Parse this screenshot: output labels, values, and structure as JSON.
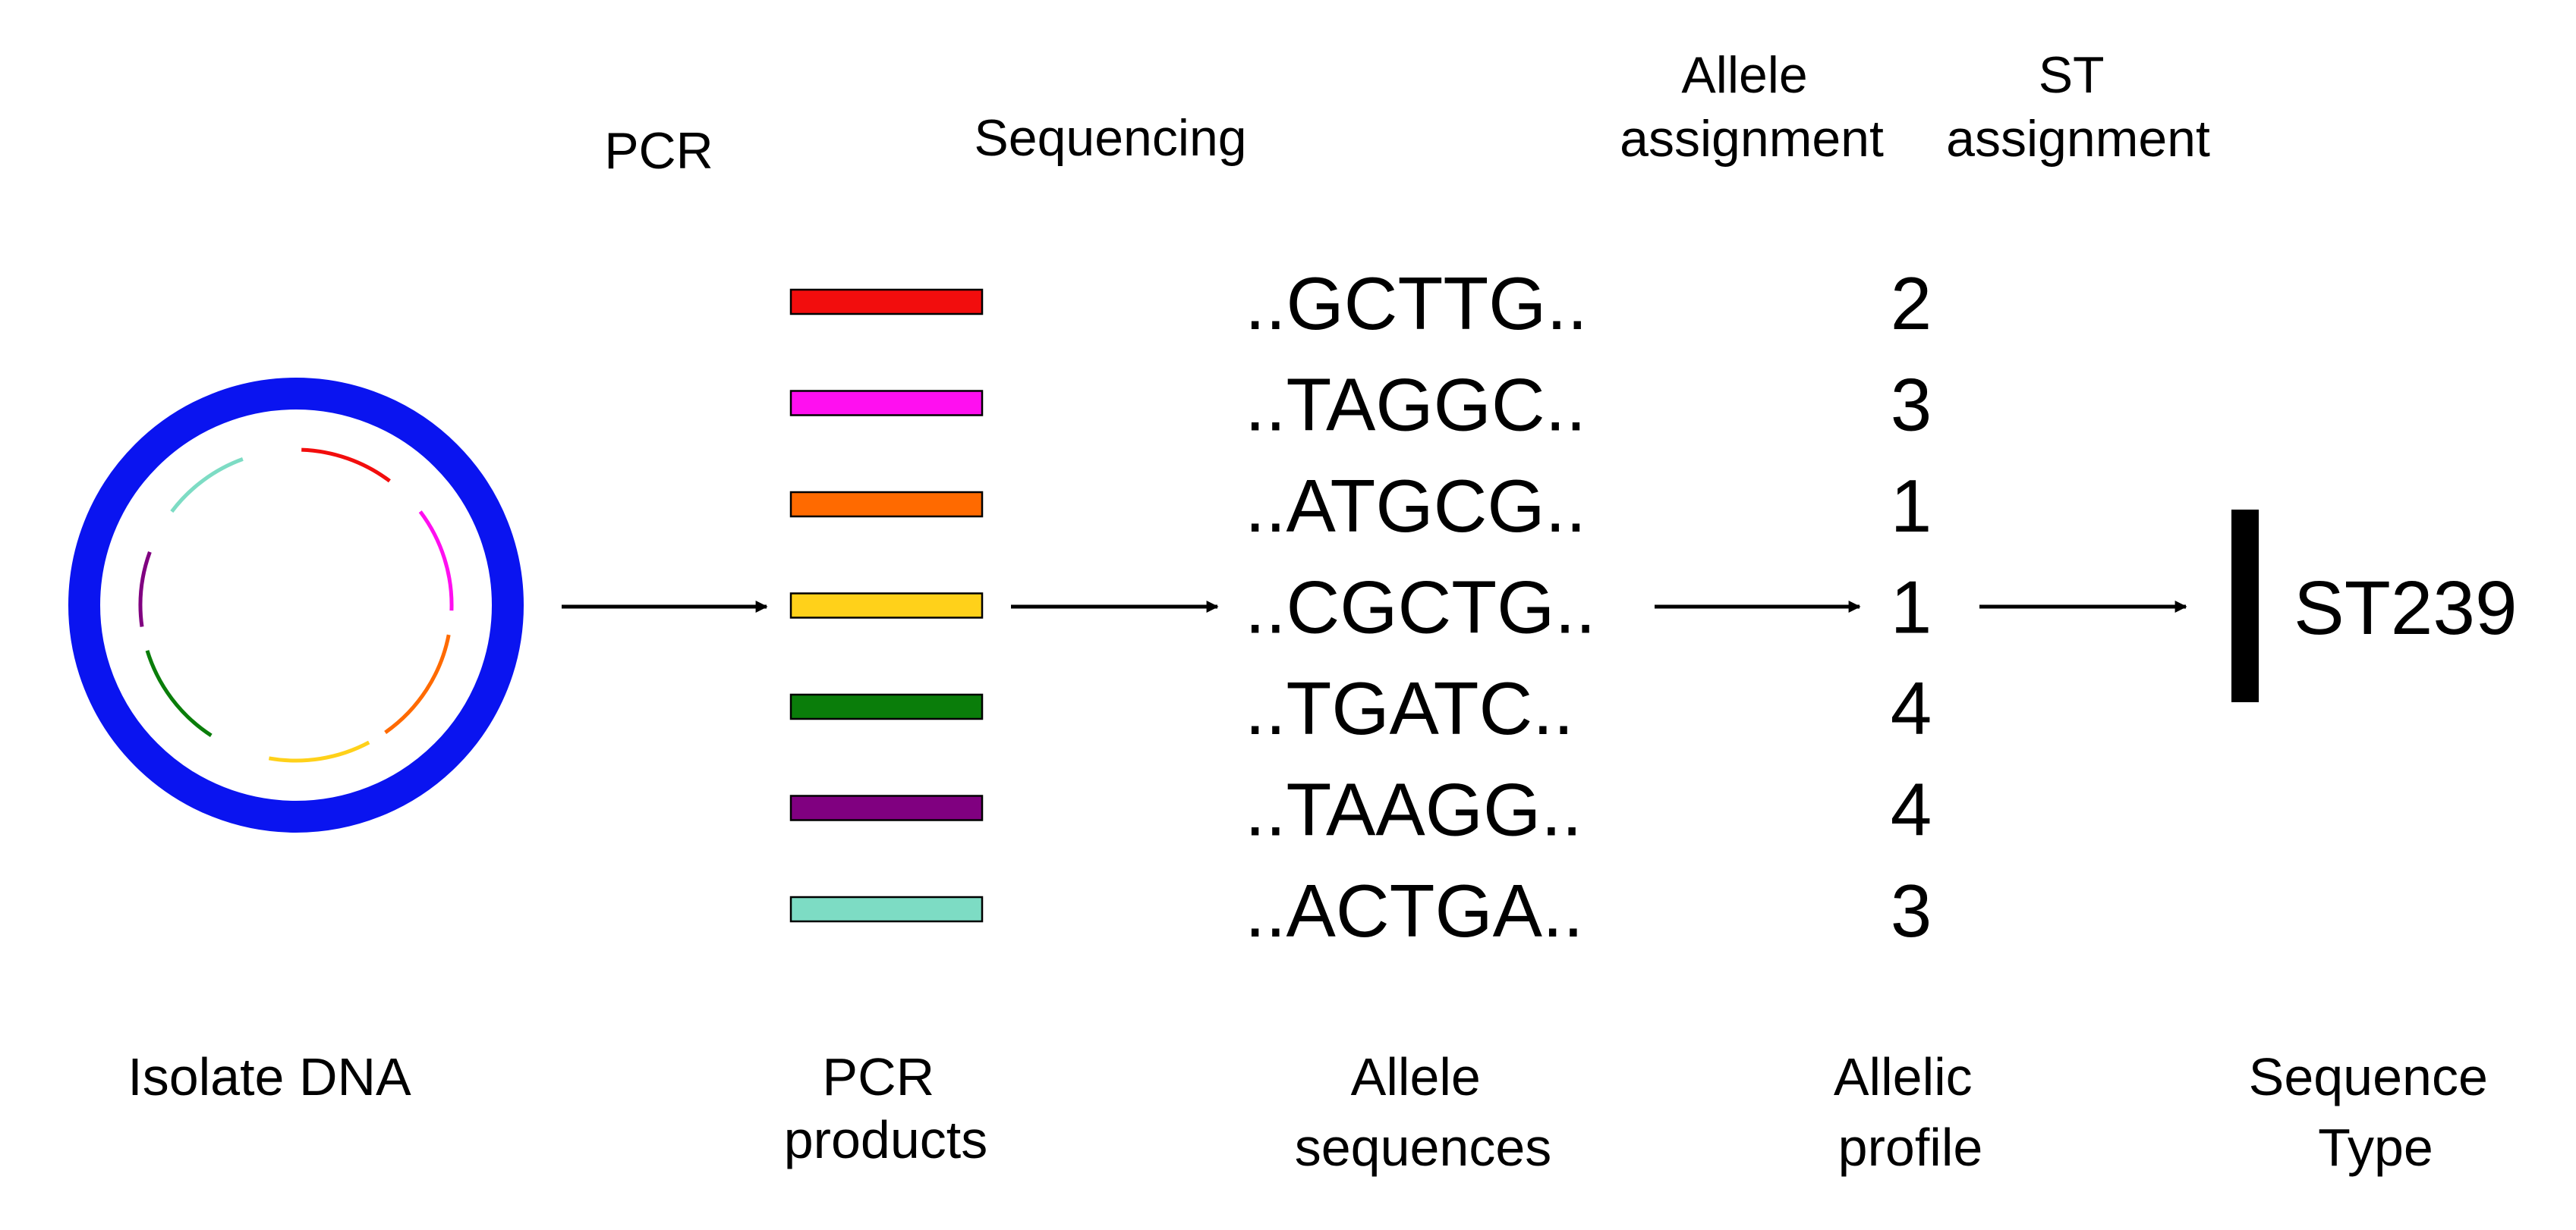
{
  "steps": {
    "pcr": "PCR",
    "sequencing": "Sequencing",
    "allele_assignment": [
      "Allele",
      "assignment"
    ],
    "st_assignment": [
      "ST",
      "assignment"
    ]
  },
  "stages": {
    "isolate_dna": [
      "Isolate DNA"
    ],
    "pcr_products": [
      "PCR",
      "products"
    ],
    "allele_sequences": [
      "Allele",
      "sequences"
    ],
    "allelic_profile": [
      "Allelic",
      "profile"
    ],
    "sequence_type": [
      "Sequence",
      "Type"
    ]
  },
  "dna_ring_color": "#0a14f0",
  "loci": [
    {
      "color": "#f20d0d",
      "sequence": "..GCTTG..",
      "allele": "2"
    },
    {
      "color": "#ff0ff0",
      "sequence": "..TAGGC..",
      "allele": "3"
    },
    {
      "color": "#ff6a00",
      "sequence": "..ATGCG..",
      "allele": "1"
    },
    {
      "color": "#ffd11a",
      "sequence": "..CGCTG..",
      "allele": "1"
    },
    {
      "color": "#0a7d0a",
      "sequence": "..TGATC..",
      "allele": "4"
    },
    {
      "color": "#800080",
      "sequence": "..TAAGG..",
      "allele": "4"
    },
    {
      "color": "#7ddcc4",
      "sequence": "..ACTGA..",
      "allele": "3"
    }
  ],
  "sequence_type": "ST239"
}
